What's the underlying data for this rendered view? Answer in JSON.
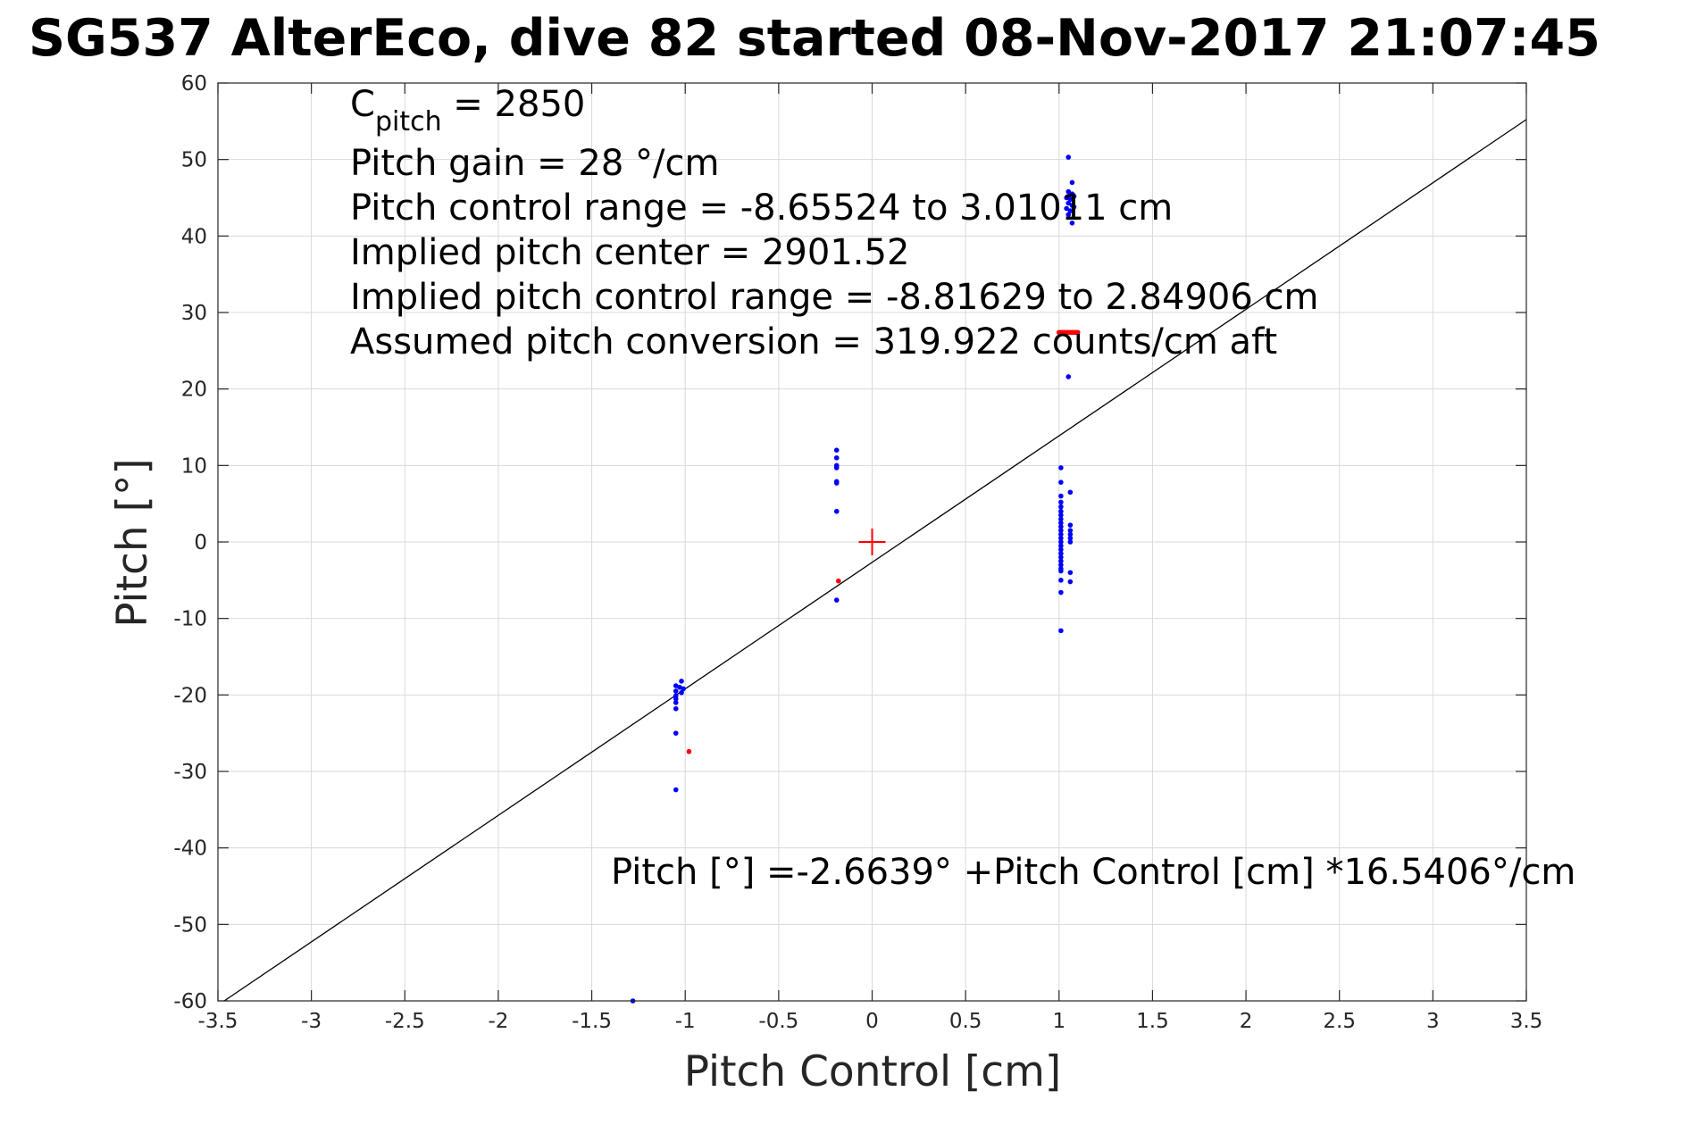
{
  "chart_data": {
    "type": "scatter",
    "title": "SG537 AlterEco, dive 82 started 08-Nov-2017 21:07:45",
    "xlabel": "Pitch Control [cm]",
    "ylabel": "Pitch [°]",
    "xlim": [
      -3.5,
      3.5
    ],
    "ylim": [
      -60,
      60
    ],
    "xticks": [
      "-3.5",
      "-3",
      "-2.5",
      "-2",
      "-1.5",
      "-1",
      "-0.5",
      "0",
      "0.5",
      "1",
      "1.5",
      "2",
      "2.5",
      "3",
      "3.5"
    ],
    "yticks": [
      "-60",
      "-50",
      "-40",
      "-30",
      "-20",
      "-10",
      "0",
      "10",
      "20",
      "30",
      "40",
      "50",
      "60"
    ],
    "grid": true,
    "annotations": {
      "c_pitch_main": "C",
      "c_pitch_sub": "pitch",
      "c_pitch_value": " = 2850",
      "pitch_gain": "Pitch gain = 28 °/cm",
      "pitch_control_range": "Pitch control range = -8.65524 to 3.01011 cm",
      "implied_center": "Implied pitch center = 2901.52",
      "implied_range": "Implied pitch control range = -8.81629 to 2.84906 cm",
      "conversion": "Assumed pitch conversion = 319.922 counts/cm aft",
      "fit_equation": "Pitch [°] =-2.6639° +Pitch Control [cm] *16.5406°/cm"
    },
    "fit_line": {
      "intercept": -2.6639,
      "slope": 16.5406,
      "color": "#000000"
    },
    "center_marker": {
      "x": 0,
      "y": 0,
      "color": "#ff0000"
    },
    "series": [
      {
        "color": "#0000ff",
        "points": [
          [
            1.05,
            50.3
          ],
          [
            1.07,
            47.0
          ],
          [
            1.05,
            45.8
          ],
          [
            1.07,
            45.5
          ],
          [
            1.04,
            45.0
          ],
          [
            1.06,
            44.8
          ],
          [
            1.08,
            45.2
          ],
          [
            1.05,
            44.3
          ],
          [
            1.07,
            44.0
          ],
          [
            1.04,
            43.6
          ],
          [
            1.06,
            43.3
          ],
          [
            1.05,
            42.8
          ],
          [
            1.08,
            43.8
          ],
          [
            1.07,
            41.7
          ],
          [
            1.05,
            21.6
          ],
          [
            1.01,
            9.7
          ],
          [
            1.01,
            7.8
          ],
          [
            1.06,
            6.5
          ],
          [
            1.01,
            6.0
          ],
          [
            1.01,
            5.2
          ],
          [
            1.01,
            4.6
          ],
          [
            1.01,
            4.0
          ],
          [
            1.01,
            3.5
          ],
          [
            1.01,
            3.0
          ],
          [
            1.01,
            2.5
          ],
          [
            1.01,
            2.0
          ],
          [
            1.06,
            2.2
          ],
          [
            1.01,
            1.5
          ],
          [
            1.06,
            1.5
          ],
          [
            1.01,
            1.0
          ],
          [
            1.06,
            1.0
          ],
          [
            1.01,
            0.5
          ],
          [
            1.06,
            0.5
          ],
          [
            1.01,
            0.0
          ],
          [
            1.06,
            0.0
          ],
          [
            1.01,
            -0.5
          ],
          [
            1.01,
            -1.0
          ],
          [
            1.01,
            -1.5
          ],
          [
            1.01,
            -2.0
          ],
          [
            1.01,
            -2.5
          ],
          [
            1.01,
            -3.0
          ],
          [
            1.01,
            -3.5
          ],
          [
            1.01,
            -3.8
          ],
          [
            1.06,
            -4.0
          ],
          [
            1.01,
            -5.0
          ],
          [
            1.06,
            -5.2
          ],
          [
            1.01,
            -6.6
          ],
          [
            1.01,
            -11.6
          ],
          [
            -0.19,
            12.0
          ],
          [
            -0.19,
            11.0
          ],
          [
            -0.19,
            10.0
          ],
          [
            -0.19,
            9.7
          ],
          [
            -0.19,
            7.9
          ],
          [
            -0.19,
            7.7
          ],
          [
            -0.19,
            4.0
          ],
          [
            -0.19,
            -7.6
          ],
          [
            -1.02,
            -18.2
          ],
          [
            -1.05,
            -18.8
          ],
          [
            -1.03,
            -19.0
          ],
          [
            -1.01,
            -19.2
          ],
          [
            -1.05,
            -19.5
          ],
          [
            -1.02,
            -19.7
          ],
          [
            -1.05,
            -20.1
          ],
          [
            -1.05,
            -20.5
          ],
          [
            -1.05,
            -21.0
          ],
          [
            -1.05,
            -21.8
          ],
          [
            -1.05,
            -25.0
          ],
          [
            -1.05,
            -32.4
          ],
          [
            -1.28,
            -60.0
          ]
        ]
      },
      {
        "color": "#ff0000",
        "points": [
          [
            -0.18,
            -5.1
          ],
          [
            -0.98,
            -27.4
          ],
          [
            1.0,
            27.4
          ],
          [
            1.01,
            27.4
          ],
          [
            1.02,
            27.4
          ],
          [
            1.03,
            27.4
          ],
          [
            1.04,
            27.4
          ],
          [
            1.05,
            27.4
          ],
          [
            1.06,
            27.4
          ],
          [
            1.07,
            27.4
          ],
          [
            1.08,
            27.4
          ],
          [
            1.09,
            27.4
          ],
          [
            1.1,
            27.4
          ]
        ]
      }
    ]
  }
}
